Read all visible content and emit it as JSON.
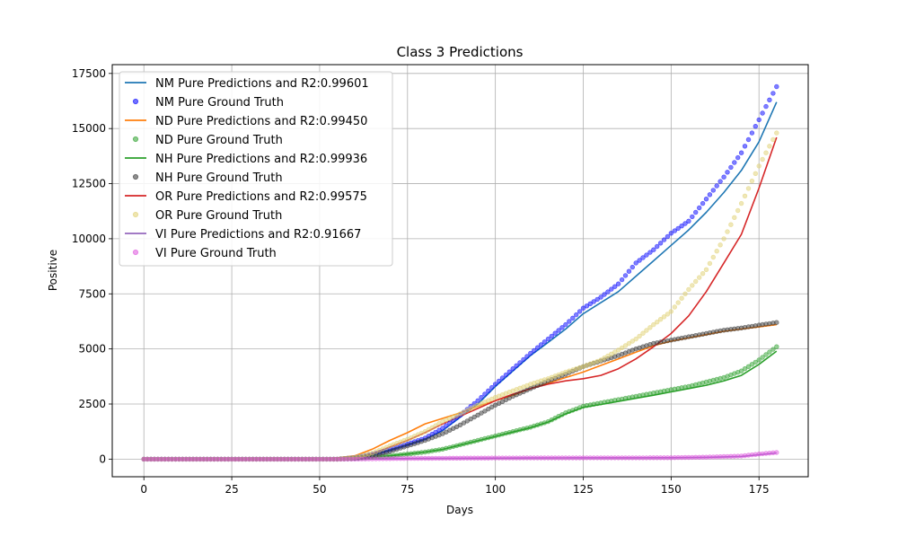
{
  "chart_data": {
    "type": "line",
    "title": "Class 3 Predictions",
    "xlabel": "Days",
    "ylabel": "Positive",
    "xlim": [
      -9,
      189
    ],
    "ylim": [
      -800,
      17900
    ],
    "xticks": [
      0,
      25,
      50,
      75,
      100,
      125,
      150,
      175
    ],
    "yticks": [
      0,
      2500,
      5000,
      7500,
      10000,
      12500,
      15000,
      17500
    ],
    "grid": true,
    "legend_position": "top-left",
    "series": [
      {
        "name": "NM Pure Predictions and R2:0.99601",
        "kind": "line",
        "color": "#1f77b4",
        "points": [
          [
            0,
            0
          ],
          [
            55,
            0
          ],
          [
            60,
            60
          ],
          [
            65,
            200
          ],
          [
            70,
            400
          ],
          [
            75,
            650
          ],
          [
            80,
            900
          ],
          [
            85,
            1300
          ],
          [
            90,
            1900
          ],
          [
            95,
            2500
          ],
          [
            100,
            3300
          ],
          [
            105,
            4000
          ],
          [
            110,
            4700
          ],
          [
            115,
            5300
          ],
          [
            120,
            5900
          ],
          [
            125,
            6600
          ],
          [
            130,
            7100
          ],
          [
            135,
            7600
          ],
          [
            140,
            8300
          ],
          [
            145,
            9000
          ],
          [
            150,
            9700
          ],
          [
            155,
            10400
          ],
          [
            160,
            11200
          ],
          [
            165,
            12100
          ],
          [
            170,
            13100
          ],
          [
            175,
            14400
          ],
          [
            180,
            16200
          ]
        ]
      },
      {
        "name": "NM Pure Ground Truth",
        "kind": "scatter",
        "color": "#0000ff",
        "points": [
          [
            0,
            0
          ],
          [
            55,
            0
          ],
          [
            60,
            70
          ],
          [
            65,
            220
          ],
          [
            70,
            430
          ],
          [
            75,
            680
          ],
          [
            80,
            950
          ],
          [
            85,
            1400
          ],
          [
            90,
            2000
          ],
          [
            95,
            2650
          ],
          [
            100,
            3400
          ],
          [
            105,
            4100
          ],
          [
            110,
            4800
          ],
          [
            115,
            5450
          ],
          [
            120,
            6100
          ],
          [
            125,
            6850
          ],
          [
            130,
            7350
          ],
          [
            135,
            7950
          ],
          [
            140,
            8900
          ],
          [
            145,
            9500
          ],
          [
            150,
            10250
          ],
          [
            155,
            10800
          ],
          [
            160,
            11800
          ],
          [
            165,
            12800
          ],
          [
            170,
            13900
          ],
          [
            175,
            15400
          ],
          [
            180,
            16900
          ]
        ]
      },
      {
        "name": "ND Pure Predictions and R2:0.99450",
        "kind": "line",
        "color": "#ff7f0e",
        "points": [
          [
            0,
            0
          ],
          [
            50,
            0
          ],
          [
            55,
            60
          ],
          [
            60,
            150
          ],
          [
            65,
            450
          ],
          [
            70,
            850
          ],
          [
            75,
            1200
          ],
          [
            80,
            1600
          ],
          [
            85,
            1850
          ],
          [
            90,
            2100
          ],
          [
            95,
            2400
          ],
          [
            100,
            2650
          ],
          [
            105,
            2900
          ],
          [
            110,
            3200
          ],
          [
            115,
            3450
          ],
          [
            120,
            3700
          ],
          [
            125,
            3950
          ],
          [
            130,
            4250
          ],
          [
            135,
            4550
          ],
          [
            140,
            4850
          ],
          [
            145,
            5150
          ],
          [
            150,
            5350
          ],
          [
            155,
            5500
          ],
          [
            160,
            5650
          ],
          [
            165,
            5800
          ],
          [
            170,
            5900
          ],
          [
            175,
            6000
          ],
          [
            180,
            6100
          ]
        ]
      },
      {
        "name": "ND Pure Ground Truth",
        "kind": "scatter",
        "color": "#2ca02c",
        "points": [
          [
            0,
            0
          ],
          [
            55,
            0
          ],
          [
            60,
            30
          ],
          [
            65,
            80
          ],
          [
            70,
            150
          ],
          [
            75,
            230
          ],
          [
            80,
            320
          ],
          [
            85,
            450
          ],
          [
            90,
            650
          ],
          [
            95,
            850
          ],
          [
            100,
            1050
          ],
          [
            105,
            1250
          ],
          [
            110,
            1450
          ],
          [
            115,
            1700
          ],
          [
            120,
            2100
          ],
          [
            125,
            2400
          ],
          [
            130,
            2550
          ],
          [
            135,
            2700
          ],
          [
            140,
            2850
          ],
          [
            145,
            3000
          ],
          [
            150,
            3150
          ],
          [
            155,
            3300
          ],
          [
            160,
            3500
          ],
          [
            165,
            3700
          ],
          [
            170,
            4000
          ],
          [
            175,
            4500
          ],
          [
            180,
            5100
          ]
        ]
      },
      {
        "name": "NH Pure Predictions and R2:0.99936",
        "kind": "line",
        "color": "#2ca02c",
        "points": [
          [
            0,
            0
          ],
          [
            55,
            0
          ],
          [
            60,
            30
          ],
          [
            65,
            80
          ],
          [
            70,
            150
          ],
          [
            75,
            230
          ],
          [
            80,
            320
          ],
          [
            85,
            440
          ],
          [
            90,
            640
          ],
          [
            95,
            830
          ],
          [
            100,
            1030
          ],
          [
            105,
            1230
          ],
          [
            110,
            1430
          ],
          [
            115,
            1680
          ],
          [
            120,
            2050
          ],
          [
            125,
            2350
          ],
          [
            130,
            2480
          ],
          [
            135,
            2620
          ],
          [
            140,
            2760
          ],
          [
            145,
            2900
          ],
          [
            150,
            3050
          ],
          [
            155,
            3200
          ],
          [
            160,
            3350
          ],
          [
            165,
            3550
          ],
          [
            170,
            3800
          ],
          [
            175,
            4300
          ],
          [
            180,
            4900
          ]
        ]
      },
      {
        "name": "NH Pure Ground Truth",
        "kind": "scatter",
        "color": "#333333",
        "points": [
          [
            0,
            0
          ],
          [
            55,
            0
          ],
          [
            60,
            40
          ],
          [
            65,
            150
          ],
          [
            70,
            350
          ],
          [
            75,
            600
          ],
          [
            80,
            850
          ],
          [
            85,
            1150
          ],
          [
            90,
            1550
          ],
          [
            95,
            2000
          ],
          [
            100,
            2450
          ],
          [
            105,
            2850
          ],
          [
            110,
            3200
          ],
          [
            115,
            3550
          ],
          [
            120,
            3850
          ],
          [
            125,
            4200
          ],
          [
            130,
            4450
          ],
          [
            135,
            4700
          ],
          [
            140,
            5000
          ],
          [
            145,
            5250
          ],
          [
            150,
            5400
          ],
          [
            155,
            5550
          ],
          [
            160,
            5700
          ],
          [
            165,
            5850
          ],
          [
            170,
            5950
          ],
          [
            175,
            6080
          ],
          [
            180,
            6200
          ]
        ]
      },
      {
        "name": "OR Pure Predictions and R2:0.99575",
        "kind": "line",
        "color": "#d62728",
        "points": [
          [
            0,
            0
          ],
          [
            55,
            0
          ],
          [
            60,
            50
          ],
          [
            65,
            250
          ],
          [
            70,
            550
          ],
          [
            75,
            850
          ],
          [
            80,
            1200
          ],
          [
            85,
            1600
          ],
          [
            90,
            1950
          ],
          [
            95,
            2300
          ],
          [
            100,
            2650
          ],
          [
            105,
            2950
          ],
          [
            110,
            3200
          ],
          [
            115,
            3400
          ],
          [
            120,
            3550
          ],
          [
            125,
            3650
          ],
          [
            130,
            3800
          ],
          [
            135,
            4100
          ],
          [
            140,
            4550
          ],
          [
            145,
            5100
          ],
          [
            150,
            5700
          ],
          [
            155,
            6500
          ],
          [
            160,
            7600
          ],
          [
            165,
            8900
          ],
          [
            170,
            10200
          ],
          [
            175,
            12300
          ],
          [
            180,
            14600
          ]
        ]
      },
      {
        "name": "OR Pure Ground Truth",
        "kind": "scatter",
        "color": "#e0d070",
        "points": [
          [
            0,
            0
          ],
          [
            55,
            0
          ],
          [
            60,
            70
          ],
          [
            65,
            270
          ],
          [
            70,
            600
          ],
          [
            75,
            900
          ],
          [
            80,
            1250
          ],
          [
            85,
            1700
          ],
          [
            90,
            2050
          ],
          [
            95,
            2450
          ],
          [
            100,
            2800
          ],
          [
            105,
            3100
          ],
          [
            110,
            3400
          ],
          [
            115,
            3650
          ],
          [
            120,
            3950
          ],
          [
            125,
            4200
          ],
          [
            130,
            4500
          ],
          [
            135,
            4950
          ],
          [
            140,
            5450
          ],
          [
            145,
            6100
          ],
          [
            150,
            6700
          ],
          [
            155,
            7700
          ],
          [
            160,
            8600
          ],
          [
            165,
            10000
          ],
          [
            170,
            11600
          ],
          [
            175,
            13300
          ],
          [
            180,
            14800
          ]
        ]
      },
      {
        "name": "VI Pure Predictions and R2:0.91667",
        "kind": "line",
        "color": "#9467bd",
        "points": [
          [
            0,
            0
          ],
          [
            60,
            0
          ],
          [
            70,
            20
          ],
          [
            80,
            30
          ],
          [
            90,
            40
          ],
          [
            100,
            45
          ],
          [
            110,
            50
          ],
          [
            120,
            55
          ],
          [
            130,
            60
          ],
          [
            140,
            60
          ],
          [
            150,
            65
          ],
          [
            160,
            80
          ],
          [
            170,
            120
          ],
          [
            175,
            200
          ],
          [
            180,
            280
          ]
        ]
      },
      {
        "name": "VI Pure Ground Truth",
        "kind": "scatter",
        "color": "#dd55dd",
        "points": [
          [
            0,
            0
          ],
          [
            60,
            0
          ],
          [
            70,
            25
          ],
          [
            80,
            35
          ],
          [
            90,
            45
          ],
          [
            100,
            50
          ],
          [
            110,
            55
          ],
          [
            120,
            55
          ],
          [
            130,
            60
          ],
          [
            140,
            60
          ],
          [
            150,
            65
          ],
          [
            160,
            90
          ],
          [
            170,
            140
          ],
          [
            175,
            230
          ],
          [
            180,
            300
          ]
        ]
      }
    ]
  }
}
